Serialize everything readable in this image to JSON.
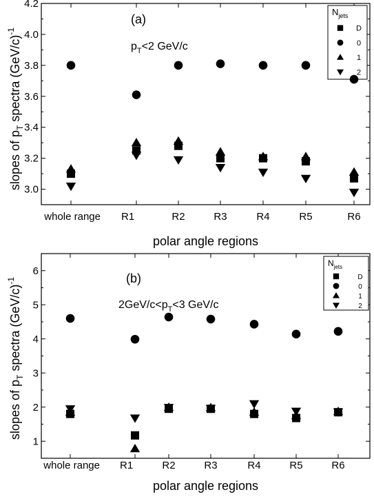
{
  "chart_data": [
    {
      "type": "scatter",
      "panel_label": "(a)",
      "annotation": "p_T<2 GeV/c",
      "xlabel": "polar angle regions",
      "ylabel": "slopes of p_T spectra (GeV/c)^-1",
      "categories": [
        "whole range",
        "R1",
        "R2",
        "R3",
        "R4",
        "R5",
        "R6"
      ],
      "ylim": [
        2.9,
        4.2
      ],
      "yticks": [
        3.0,
        3.2,
        3.4,
        3.6,
        3.8,
        4.0,
        4.2
      ],
      "ytick_labels": [
        "3.0",
        "3.2",
        "3.4",
        "3.6",
        "3.8",
        "4.0",
        "4.2"
      ],
      "legend": {
        "title": "N_jets",
        "position": "top-right"
      },
      "series": [
        {
          "name": "D",
          "marker": "square",
          "values": [
            3.1,
            3.25,
            3.28,
            3.2,
            3.2,
            3.18,
            3.07
          ]
        },
        {
          "name": "0",
          "marker": "circle",
          "values": [
            3.8,
            3.61,
            3.8,
            3.81,
            3.8,
            3.8,
            3.71
          ]
        },
        {
          "name": "1",
          "marker": "triangle-up",
          "values": [
            3.13,
            3.3,
            3.31,
            3.24,
            3.21,
            3.21,
            3.11
          ]
        },
        {
          "name": "2",
          "marker": "triangle-down",
          "values": [
            3.02,
            3.22,
            3.19,
            3.14,
            3.11,
            3.07,
            2.98
          ]
        }
      ]
    },
    {
      "type": "scatter",
      "panel_label": "(b)",
      "annotation": "2GeV/c<p_T<3 GeV/c",
      "xlabel": "polar angle regions",
      "ylabel": "slopes of p_T spectra (GeV/c)^-1",
      "categories": [
        "whole range",
        "R1",
        "R2",
        "R3",
        "R4",
        "R5",
        "R6"
      ],
      "ylim": [
        0.5,
        6.5
      ],
      "yticks": [
        1,
        2,
        3,
        4,
        5,
        6
      ],
      "ytick_labels": [
        "1",
        "2",
        "3",
        "4",
        "5",
        "6"
      ],
      "legend": {
        "title": "N_jets",
        "position": "top-right"
      },
      "series": [
        {
          "name": "D",
          "marker": "square",
          "values": [
            1.8,
            1.17,
            1.95,
            1.95,
            1.8,
            1.68,
            1.85
          ]
        },
        {
          "name": "0",
          "marker": "circle",
          "values": [
            4.6,
            3.99,
            4.64,
            4.58,
            4.43,
            4.14,
            4.22
          ]
        },
        {
          "name": "1",
          "marker": "triangle-up",
          "values": [
            1.85,
            0.78,
            1.99,
            1.98,
            1.85,
            1.75,
            1.87
          ]
        },
        {
          "name": "2",
          "marker": "triangle-down",
          "values": [
            1.95,
            1.68,
            1.99,
            1.96,
            2.1,
            1.88,
            1.86
          ]
        }
      ]
    }
  ]
}
